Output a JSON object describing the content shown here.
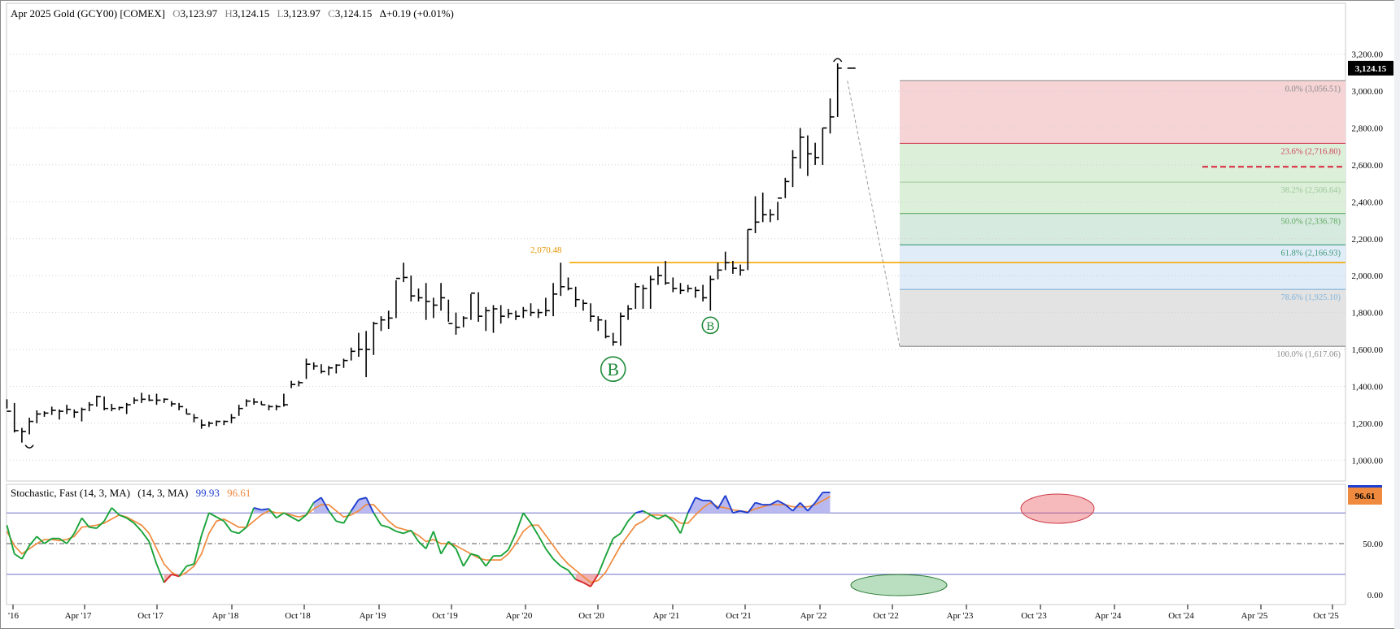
{
  "header": {
    "instrument": "Apr 2025 Gold (GCY00) [COMEX]",
    "open_label": "O",
    "open_value": "3,123.97",
    "high_label": "H",
    "high_value": "3,124.15",
    "low_label": "L",
    "low_value": "3,123.97",
    "close_label": "C",
    "close_value": "3,124.15",
    "change": "Δ+0.19 (+0.01%)"
  },
  "colors": {
    "bars": "#000000",
    "resistance": "#f5a800",
    "fib_zone_1": "#f6d3d5",
    "fib_zone_2": "#dcefd9",
    "fib_zone_3": "#d7eadf",
    "fib_zone_4": "#e0ecf8",
    "fib_zone_5": "#e3e3e3",
    "stoch_k": "#1aa33a",
    "stoch_k_high": "#1f3fd1",
    "stoch_k_low": "#d62a2a",
    "stoch_d": "#f08a3e",
    "stoch_fill_high": "#b9b9f0",
    "stoch_level_line": "#6f6fc8",
    "marker": "#1f8a3a",
    "support_dash": "#d9233a"
  },
  "chart_data": [
    {
      "type": "bar",
      "panel": "price",
      "title": "Apr 2025 Gold (GCY00) [COMEX]",
      "ylim": [
        900,
        3260
      ],
      "y_ticks": [
        "3,200.00",
        "3,000.00",
        "2,800.00",
        "2,600.00",
        "2,400.00",
        "2,200.00",
        "2,000.00",
        "1,800.00",
        "1,600.00",
        "1,400.00",
        "1,200.00",
        "1,000.00"
      ],
      "x_ticks": [
        "'16",
        "Apr '17",
        "Oct '17",
        "Apr '18",
        "Oct '18",
        "Apr '19",
        "Oct '19",
        "Apr '20",
        "Oct '20",
        "Apr '21",
        "Oct '21",
        "Apr '22",
        "Oct '22",
        "Apr '23",
        "Oct '23",
        "Apr '24",
        "Oct '24",
        "Apr '25",
        "Oct '25"
      ],
      "last_price_label": "3,124.15",
      "resistance": {
        "value": 2070.48,
        "label": "2,070.48"
      },
      "fib_levels": [
        {
          "pct": "0.0%",
          "value": 3056.51,
          "label": "0.0% (3,056.51)",
          "color": "#8a8a8a"
        },
        {
          "pct": "23.6%",
          "value": 2716.8,
          "label": "23.6% (2,716.80)",
          "color": "#d0455a"
        },
        {
          "pct": "38.2%",
          "value": 2506.64,
          "label": "38.2% (2,506.64)",
          "color": "#9cc79a"
        },
        {
          "pct": "50.0%",
          "value": 2336.78,
          "label": "50.0% (2,336.78)",
          "color": "#5da85e"
        },
        {
          "pct": "61.8%",
          "value": 2166.93,
          "label": "61.8% (2,166.93)",
          "color": "#3f9a78"
        },
        {
          "pct": "78.6%",
          "value": 1925.1,
          "label": "78.6% (1,925.10)",
          "color": "#7fb3da"
        },
        {
          "pct": "100.0%",
          "value": 1617.06,
          "label": "100.0% (1,617.06)",
          "color": "#8a8a8a"
        }
      ],
      "support_dashed": 2590,
      "markers": [
        {
          "label": "B",
          "month_index": 81
        },
        {
          "label": "B",
          "month_index": 94
        }
      ],
      "series": [
        {
          "name": "",
          "bars": [
            [
              1330,
              1280,
              1265
            ],
            [
              1310,
              1150,
              1160
            ],
            [
              1175,
              1095,
              1155
            ],
            [
              1230,
              1140,
              1210
            ],
            [
              1270,
              1200,
              1250
            ],
            [
              1265,
              1235,
              1255
            ],
            [
              1290,
              1245,
              1270
            ],
            [
              1275,
              1220,
              1265
            ],
            [
              1300,
              1250,
              1275
            ],
            [
              1275,
              1230,
              1260
            ],
            [
              1285,
              1210,
              1275
            ],
            [
              1315,
              1265,
              1300
            ],
            [
              1350,
              1290,
              1345
            ],
            [
              1345,
              1270,
              1280
            ],
            [
              1305,
              1265,
              1280
            ],
            [
              1290,
              1270,
              1285
            ],
            [
              1310,
              1250,
              1300
            ],
            [
              1340,
              1305,
              1325
            ],
            [
              1365,
              1310,
              1330
            ],
            [
              1355,
              1320,
              1325
            ],
            [
              1360,
              1300,
              1325
            ],
            [
              1335,
              1310,
              1330
            ],
            [
              1320,
              1290,
              1305
            ],
            [
              1310,
              1270,
              1290
            ],
            [
              1280,
              1250,
              1250
            ],
            [
              1250,
              1205,
              1230
            ],
            [
              1220,
              1170,
              1190
            ],
            [
              1210,
              1180,
              1200
            ],
            [
              1215,
              1185,
              1210
            ],
            [
              1215,
              1190,
              1210
            ],
            [
              1250,
              1200,
              1230
            ],
            [
              1300,
              1240,
              1280
            ],
            [
              1330,
              1290,
              1320
            ],
            [
              1335,
              1300,
              1315
            ],
            [
              1320,
              1300,
              1300
            ],
            [
              1300,
              1270,
              1290
            ],
            [
              1300,
              1270,
              1290
            ],
            [
              1360,
              1290,
              1300
            ],
            [
              1430,
              1390,
              1410
            ],
            [
              1430,
              1400,
              1420
            ],
            [
              1550,
              1440,
              1520
            ],
            [
              1530,
              1490,
              1510
            ],
            [
              1520,
              1470,
              1480
            ],
            [
              1510,
              1460,
              1500
            ],
            [
              1520,
              1470,
              1515
            ],
            [
              1550,
              1500,
              1540
            ],
            [
              1610,
              1540,
              1590
            ],
            [
              1690,
              1560,
              1600
            ],
            [
              1700,
              1450,
              1600
            ],
            [
              1750,
              1570,
              1740
            ],
            [
              1780,
              1700,
              1760
            ],
            [
              1810,
              1710,
              1770
            ],
            [
              1975,
              1770,
              1985
            ],
            [
              2070,
              1965,
              1990
            ],
            [
              2000,
              1860,
              1890
            ],
            [
              1930,
              1860,
              1880
            ],
            [
              1960,
              1760,
              1860
            ],
            [
              1880,
              1770,
              1840
            ],
            [
              1960,
              1810,
              1880
            ],
            [
              1870,
              1750,
              1740
            ],
            [
              1800,
              1680,
              1720
            ],
            [
              1780,
              1720,
              1770
            ],
            [
              1900,
              1760,
              1905
            ],
            [
              1910,
              1750,
              1780
            ],
            [
              1830,
              1700,
              1810
            ],
            [
              1840,
              1690,
              1820
            ],
            [
              1840,
              1740,
              1780
            ],
            [
              1820,
              1770,
              1795
            ],
            [
              1810,
              1760,
              1780
            ],
            [
              1830,
              1770,
              1810
            ],
            [
              1850,
              1780,
              1800
            ],
            [
              1820,
              1770,
              1800
            ],
            [
              1880,
              1780,
              1810
            ],
            [
              1960,
              1780,
              1900
            ],
            [
              2070,
              1890,
              1940
            ],
            [
              1990,
              1920,
              1930
            ],
            [
              1940,
              1830,
              1870
            ],
            [
              1870,
              1810,
              1850
            ],
            [
              1850,
              1750,
              1780
            ],
            [
              1780,
              1700,
              1760
            ],
            [
              1760,
              1660,
              1670
            ],
            [
              1690,
              1620,
              1640
            ],
            [
              1800,
              1620,
              1780
            ],
            [
              1840,
              1760,
              1820
            ],
            [
              1960,
              1820,
              1940
            ],
            [
              1950,
              1820,
              1930
            ],
            [
              2000,
              1820,
              1980
            ],
            [
              2050,
              1950,
              2000
            ],
            [
              2080,
              1950,
              1960
            ],
            [
              1990,
              1910,
              1930
            ],
            [
              1960,
              1900,
              1920
            ],
            [
              1950,
              1910,
              1930
            ],
            [
              1940,
              1880,
              1920
            ],
            [
              1950,
              1860,
              1880
            ],
            [
              2000,
              1810,
              1980
            ],
            [
              2070,
              1980,
              2030
            ],
            [
              2130,
              2030,
              2070
            ],
            [
              2080,
              2010,
              2040
            ],
            [
              2060,
              2000,
              2030
            ],
            [
              2250,
              2030,
              2250
            ],
            [
              2430,
              2230,
              2290
            ],
            [
              2450,
              2290,
              2330
            ],
            [
              2360,
              2290,
              2330
            ],
            [
              2400,
              2300,
              2420
            ],
            [
              2530,
              2420,
              2510
            ],
            [
              2680,
              2480,
              2640
            ],
            [
              2800,
              2580,
              2750
            ],
            [
              2760,
              2540,
              2660
            ],
            [
              2720,
              2600,
              2640
            ],
            [
              2800,
              2600,
              2800
            ],
            [
              2960,
              2770,
              2860
            ],
            [
              3150,
              2860,
              3124.15
            ]
          ]
        }
      ]
    },
    {
      "type": "line",
      "panel": "stochastic",
      "title": "Stochastic, Fast (14, 3, MA)",
      "params": "(14, 3, MA)",
      "ylim": [
        -5,
        105
      ],
      "y_ticks": [
        "50.00",
        "0.00"
      ],
      "levels": [
        20,
        50,
        80
      ],
      "k_value_label": "99.93",
      "d_value_label": "96.61",
      "last_value_label": "96.61",
      "series": [
        {
          "name": "",
          "values": [
            68,
            40,
            35,
            48,
            57,
            50,
            55,
            55,
            50,
            60,
            75,
            66,
            65,
            72,
            85,
            78,
            75,
            70,
            62,
            52,
            30,
            12,
            20,
            18,
            28,
            30,
            58,
            80,
            76,
            72,
            62,
            60,
            66,
            85,
            83,
            84,
            75,
            80,
            76,
            72,
            78,
            90,
            95,
            82,
            72,
            70,
            82,
            93,
            95,
            80,
            68,
            66,
            62,
            60,
            63,
            52,
            45,
            62,
            40,
            52,
            45,
            28,
            40,
            38,
            28,
            38,
            38,
            44,
            60,
            80,
            70,
            58,
            45,
            35,
            28,
            24,
            15,
            12,
            8,
            20,
            38,
            55,
            60,
            72,
            80,
            82,
            78,
            74,
            78,
            72,
            60,
            80,
            95,
            92,
            92,
            84,
            97,
            80,
            82,
            80,
            90,
            88,
            88,
            92,
            88,
            82,
            90,
            82,
            90,
            100,
            100
          ]
        },
        {
          "name": "",
          "values": [
            62,
            48,
            40,
            45,
            50,
            54,
            54,
            53,
            54,
            57,
            66,
            67,
            68,
            70,
            74,
            78,
            76,
            72,
            68,
            60,
            45,
            30,
            22,
            18,
            22,
            28,
            40,
            60,
            72,
            74,
            70,
            66,
            66,
            72,
            78,
            82,
            80,
            80,
            78,
            76,
            78,
            84,
            88,
            88,
            82,
            76,
            78,
            82,
            88,
            88,
            80,
            72,
            66,
            64,
            62,
            58,
            52,
            54,
            50,
            50,
            48,
            44,
            40,
            36,
            34,
            34,
            34,
            40,
            50,
            62,
            68,
            68,
            58,
            48,
            38,
            30,
            24,
            18,
            12,
            14,
            22,
            35,
            48,
            58,
            68,
            72,
            78,
            78,
            77,
            75,
            70,
            70,
            78,
            85,
            90,
            86,
            85,
            83,
            82,
            81,
            84,
            86,
            88,
            88,
            88,
            86,
            86,
            86,
            88,
            92,
            96
          ]
        }
      ]
    }
  ]
}
